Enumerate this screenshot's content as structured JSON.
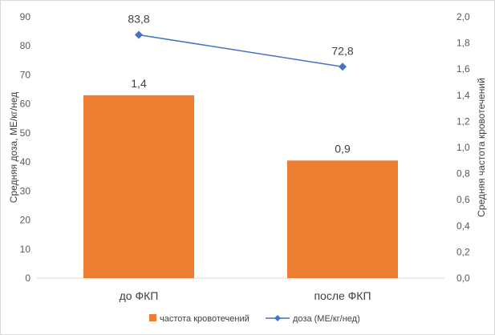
{
  "chart_data": {
    "type": "bar",
    "categories": [
      "до ФКП",
      "после ФКП"
    ],
    "series": [
      {
        "name": "частота кровотечений",
        "chart_type": "bar",
        "axis": "right",
        "values": [
          1.4,
          0.9
        ],
        "labels": [
          "1,4",
          "0,9"
        ],
        "color": "#ED7D31"
      },
      {
        "name": "доза (МЕ/кг/нед)",
        "chart_type": "line",
        "marker": "diamond",
        "axis": "left",
        "values": [
          83.8,
          72.8
        ],
        "labels": [
          "83,8",
          "72,8"
        ],
        "color": "#4472C4"
      }
    ],
    "ylabel": "Средняя доза, МЕ/кг/нед",
    "y2label": "Средняя частота кровотечений",
    "ylim": [
      0,
      90
    ],
    "y2lim": [
      0,
      2.0
    ],
    "yticks": [
      "0",
      "10",
      "20",
      "30",
      "40",
      "50",
      "60",
      "70",
      "80",
      "90"
    ],
    "y2ticks": [
      "0,0",
      "0,2",
      "0,4",
      "0,6",
      "0,8",
      "1,0",
      "1,2",
      "1,4",
      "1,6",
      "1,8",
      "2,0"
    ],
    "grid": false,
    "legend_position": "bottom"
  }
}
